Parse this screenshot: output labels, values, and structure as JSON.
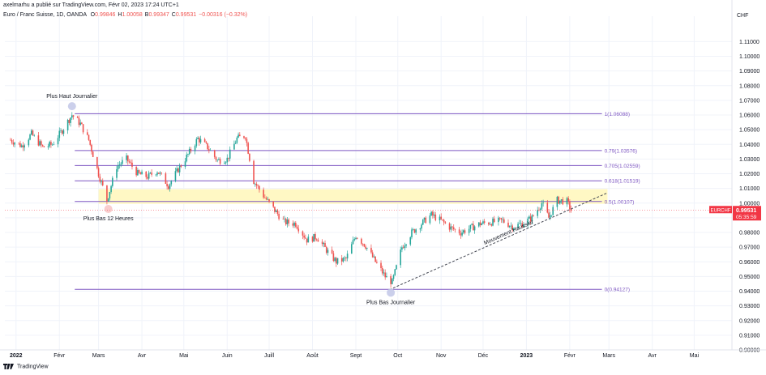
{
  "header": {
    "publisher": "axelmarhu a publié sur TradingView.com, Févr 02, 2023 17:24 UTC+1",
    "symbol_line": "Euro / Franc Suisse, 1D, OANDA",
    "ohlc": [
      {
        "label": "O",
        "value": "0.99846"
      },
      {
        "label": "H",
        "value": "1.00058"
      },
      {
        "label": "B",
        "value": "0.99347"
      },
      {
        "label": "C",
        "value": "0.99531"
      },
      {
        "label": "",
        "value": "−0.00316 (−0.32%)"
      }
    ],
    "currency": "CHF"
  },
  "footer": {
    "logo_text": "TradingView"
  },
  "colors": {
    "up": "#26a69a",
    "down": "#ef5350",
    "fib_line": "#7e57c2",
    "fib_text": "#7e57c2",
    "zone": "#fff8c4",
    "price_tag": "#f23645",
    "marker": "#c5cae9",
    "marker_low": "#f8c8c8",
    "grid": "#f0f3fa"
  },
  "chart_data": {
    "type": "candlestick",
    "symbol": "EURCHF",
    "last_price": "0.99531",
    "countdown": "05:35:59",
    "ylim": [
      0.9,
      1.124
    ],
    "y_ticks": [
      "1.11000",
      "1.10000",
      "1.09000",
      "1.08000",
      "1.07000",
      "1.06000",
      "1.05000",
      "1.04000",
      "1.03000",
      "1.02000",
      "1.01000",
      "1.00000",
      "0.99000",
      "0.98000",
      "0.97000",
      "0.96000",
      "0.95000",
      "0.94000",
      "0.93000",
      "0.92000",
      "0.91000",
      "0.90000"
    ],
    "x_ticks": [
      {
        "label": "2022",
        "date": "2022-01-01"
      },
      {
        "label": "Févr",
        "date": "2022-02-01"
      },
      {
        "label": "Mars",
        "date": "2022-03-01"
      },
      {
        "label": "Avr",
        "date": "2022-04-01"
      },
      {
        "label": "Mai",
        "date": "2022-05-01"
      },
      {
        "label": "Juin",
        "date": "2022-06-01"
      },
      {
        "label": "Juill",
        "date": "2022-07-01"
      },
      {
        "label": "Août",
        "date": "2022-08-01"
      },
      {
        "label": "Sept",
        "date": "2022-09-01"
      },
      {
        "label": "Oct",
        "date": "2022-10-01"
      },
      {
        "label": "Nov",
        "date": "2022-11-01"
      },
      {
        "label": "Déc",
        "date": "2022-12-01"
      },
      {
        "label": "2023",
        "date": "2023-01-01"
      },
      {
        "label": "Févr",
        "date": "2023-02-01"
      },
      {
        "label": "Mars",
        "date": "2023-03-01"
      },
      {
        "label": "Avr",
        "date": "2023-04-01"
      },
      {
        "label": "Mai",
        "date": "2023-05-01"
      }
    ],
    "fib_levels": [
      {
        "label": "1(1.06088)",
        "value": 1.06088
      },
      {
        "label": "0.79(1.03576)",
        "value": 1.03576
      },
      {
        "label": "0.705(1.02559)",
        "value": 1.02559
      },
      {
        "label": "0.618(1.01519)",
        "value": 1.01519
      },
      {
        "label": "0.5(1.00107)",
        "value": 1.00107
      },
      {
        "label": "0(0.94127)",
        "value": 0.94127
      }
    ],
    "zone": {
      "from": "2022-03-01",
      "to": "2023-02-28",
      "low": 0.9995,
      "high": 1.0095
    },
    "trendline": {
      "from": {
        "date": "2022-09-25",
        "value": 0.941
      },
      "to": {
        "date": "2023-02-28",
        "value": 1.007
      },
      "label": "Mouvement Haussier"
    },
    "annotations": [
      {
        "text": "Plus Haut Journalier",
        "date": "2022-02-10",
        "value": 1.066,
        "position": "above"
      },
      {
        "text": "Plus Bas 12 Heures",
        "date": "2022-03-08",
        "value": 0.996,
        "position": "below"
      },
      {
        "text": "Plus Bas Journalier",
        "date": "2022-09-26",
        "value": 0.939,
        "position": "below"
      }
    ],
    "price_path": [
      {
        "date": "2021-12-28",
        "value": 1.043
      },
      {
        "date": "2022-01-05",
        "value": 1.039
      },
      {
        "date": "2022-01-12",
        "value": 1.047
      },
      {
        "date": "2022-01-20",
        "value": 1.038
      },
      {
        "date": "2022-01-27",
        "value": 1.04
      },
      {
        "date": "2022-02-04",
        "value": 1.051
      },
      {
        "date": "2022-02-10",
        "value": 1.06
      },
      {
        "date": "2022-02-16",
        "value": 1.054
      },
      {
        "date": "2022-02-22",
        "value": 1.043
      },
      {
        "date": "2022-03-01",
        "value": 1.02
      },
      {
        "date": "2022-03-07",
        "value": 1.002
      },
      {
        "date": "2022-03-14",
        "value": 1.025
      },
      {
        "date": "2022-03-21",
        "value": 1.03
      },
      {
        "date": "2022-03-29",
        "value": 1.02
      },
      {
        "date": "2022-04-05",
        "value": 1.018
      },
      {
        "date": "2022-04-12",
        "value": 1.022
      },
      {
        "date": "2022-04-20",
        "value": 1.012
      },
      {
        "date": "2022-04-27",
        "value": 1.023
      },
      {
        "date": "2022-05-04",
        "value": 1.033
      },
      {
        "date": "2022-05-11",
        "value": 1.044
      },
      {
        "date": "2022-05-18",
        "value": 1.038
      },
      {
        "date": "2022-05-25",
        "value": 1.029
      },
      {
        "date": "2022-06-01",
        "value": 1.03
      },
      {
        "date": "2022-06-08",
        "value": 1.044
      },
      {
        "date": "2022-06-14",
        "value": 1.046
      },
      {
        "date": "2022-06-20",
        "value": 1.015
      },
      {
        "date": "2022-06-27",
        "value": 1.005
      },
      {
        "date": "2022-07-05",
        "value": 0.995
      },
      {
        "date": "2022-07-12",
        "value": 0.987
      },
      {
        "date": "2022-07-20",
        "value": 0.986
      },
      {
        "date": "2022-07-28",
        "value": 0.975
      },
      {
        "date": "2022-08-04",
        "value": 0.977
      },
      {
        "date": "2022-08-11",
        "value": 0.968
      },
      {
        "date": "2022-08-18",
        "value": 0.96
      },
      {
        "date": "2022-08-25",
        "value": 0.962
      },
      {
        "date": "2022-09-01",
        "value": 0.978
      },
      {
        "date": "2022-09-08",
        "value": 0.971
      },
      {
        "date": "2022-09-15",
        "value": 0.96
      },
      {
        "date": "2022-09-22",
        "value": 0.95
      },
      {
        "date": "2022-09-27",
        "value": 0.946
      },
      {
        "date": "2022-10-04",
        "value": 0.97
      },
      {
        "date": "2022-10-11",
        "value": 0.98
      },
      {
        "date": "2022-10-18",
        "value": 0.986
      },
      {
        "date": "2022-10-25",
        "value": 0.992
      },
      {
        "date": "2022-11-01",
        "value": 0.988
      },
      {
        "date": "2022-11-08",
        "value": 0.983
      },
      {
        "date": "2022-11-15",
        "value": 0.98
      },
      {
        "date": "2022-11-22",
        "value": 0.983
      },
      {
        "date": "2022-11-29",
        "value": 0.986
      },
      {
        "date": "2022-12-07",
        "value": 0.987
      },
      {
        "date": "2022-12-15",
        "value": 0.988
      },
      {
        "date": "2022-12-22",
        "value": 0.984
      },
      {
        "date": "2022-12-29",
        "value": 0.986
      },
      {
        "date": "2023-01-05",
        "value": 0.99
      },
      {
        "date": "2023-01-12",
        "value": 1.0
      },
      {
        "date": "2023-01-17",
        "value": 0.99
      },
      {
        "date": "2023-01-23",
        "value": 1.002
      },
      {
        "date": "2023-01-30",
        "value": 1.001
      },
      {
        "date": "2023-02-02",
        "value": 0.9953
      }
    ]
  }
}
